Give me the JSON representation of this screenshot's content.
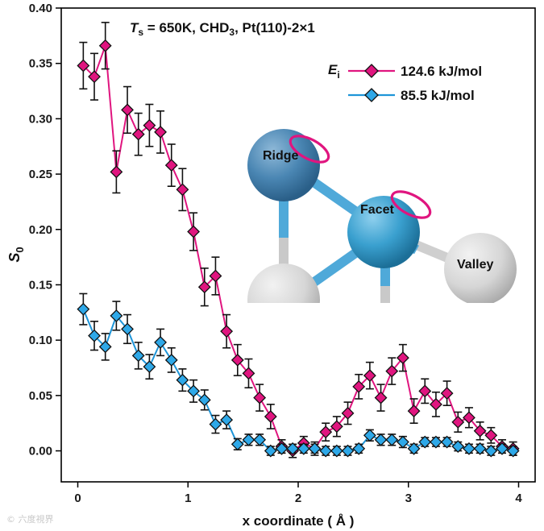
{
  "chart_data": {
    "type": "scatter",
    "title": "T_s = 650K, CHD_3, Pt(110)-2×1",
    "title_parts": {
      "T": "T",
      "s": "s",
      "mid": " = 650K, CHD",
      "sub3": "3",
      "tail": ", Pt(110)-2×1"
    },
    "xlabel": "x coordinate ( Å )",
    "ylabel": {
      "main": "S",
      "sub": "0"
    },
    "xlim": [
      -0.15,
      4.15
    ],
    "ylim": [
      -0.028,
      0.4
    ],
    "x_ticks": [
      "0",
      "1",
      "2",
      "3",
      "4"
    ],
    "y_ticks": [
      "0.00",
      "0.05",
      "0.10",
      "0.15",
      "0.20",
      "0.25",
      "0.30",
      "0.35",
      "0.40"
    ],
    "legend": {
      "label": "E",
      "sub": "i",
      "position": "top-right"
    },
    "series": [
      {
        "name": "124.6 kJ/mol",
        "color": "#e0157f",
        "marker_fill": "#e0157f",
        "x": [
          0.05,
          0.15,
          0.25,
          0.35,
          0.45,
          0.55,
          0.65,
          0.75,
          0.85,
          0.95,
          1.05,
          1.15,
          1.25,
          1.35,
          1.45,
          1.55,
          1.65,
          1.75,
          1.85,
          1.95,
          2.05,
          2.15,
          2.25,
          2.35,
          2.45,
          2.55,
          2.65,
          2.75,
          2.85,
          2.95,
          3.05,
          3.15,
          3.25,
          3.35,
          3.45,
          3.55,
          3.65,
          3.75,
          3.85,
          3.95
        ],
        "y": [
          0.348,
          0.338,
          0.366,
          0.252,
          0.308,
          0.286,
          0.294,
          0.288,
          0.258,
          0.236,
          0.198,
          0.148,
          0.158,
          0.108,
          0.082,
          0.07,
          0.048,
          0.031,
          0.004,
          0.0,
          0.007,
          0.002,
          0.017,
          0.022,
          0.034,
          0.058,
          0.068,
          0.048,
          0.072,
          0.084,
          0.036,
          0.054,
          0.042,
          0.052,
          0.026,
          0.03,
          0.018,
          0.014,
          0.004,
          0.002
        ],
        "err": [
          0.021,
          0.021,
          0.021,
          0.019,
          0.021,
          0.019,
          0.019,
          0.019,
          0.019,
          0.019,
          0.017,
          0.017,
          0.017,
          0.015,
          0.014,
          0.013,
          0.012,
          0.011,
          0.006,
          0.006,
          0.006,
          0.006,
          0.008,
          0.009,
          0.01,
          0.011,
          0.012,
          0.012,
          0.012,
          0.012,
          0.011,
          0.011,
          0.011,
          0.011,
          0.009,
          0.009,
          0.008,
          0.007,
          0.006,
          0.006
        ]
      },
      {
        "name": "85.5 kJ/mol",
        "color": "#1e95d8",
        "marker_fill": "#2ea8e8",
        "x": [
          0.05,
          0.15,
          0.25,
          0.35,
          0.45,
          0.55,
          0.65,
          0.75,
          0.85,
          0.95,
          1.05,
          1.15,
          1.25,
          1.35,
          1.45,
          1.55,
          1.65,
          1.75,
          1.85,
          1.95,
          2.05,
          2.15,
          2.25,
          2.35,
          2.45,
          2.55,
          2.65,
          2.75,
          2.85,
          2.95,
          3.05,
          3.15,
          3.25,
          3.35,
          3.45,
          3.55,
          3.65,
          3.75,
          3.85,
          3.95
        ],
        "y": [
          0.128,
          0.104,
          0.094,
          0.122,
          0.11,
          0.086,
          0.076,
          0.098,
          0.082,
          0.064,
          0.054,
          0.046,
          0.024,
          0.028,
          0.006,
          0.01,
          0.01,
          0.0,
          0.002,
          0.002,
          0.002,
          0.002,
          0.0,
          0.0,
          0.0,
          0.002,
          0.014,
          0.01,
          0.01,
          0.008,
          0.002,
          0.008,
          0.008,
          0.008,
          0.004,
          0.002,
          0.002,
          0.0,
          0.002,
          0.0
        ],
        "err": [
          0.014,
          0.013,
          0.012,
          0.013,
          0.013,
          0.012,
          0.011,
          0.012,
          0.011,
          0.01,
          0.01,
          0.009,
          0.008,
          0.008,
          0.005,
          0.005,
          0.005,
          0.004,
          0.004,
          0.004,
          0.004,
          0.004,
          0.004,
          0.004,
          0.004,
          0.004,
          0.005,
          0.005,
          0.005,
          0.005,
          0.004,
          0.004,
          0.004,
          0.004,
          0.004,
          0.004,
          0.004,
          0.004,
          0.004,
          0.004
        ]
      }
    ],
    "inset_labels": {
      "ridge": "Ridge",
      "facet": "Facet",
      "valley": "Valley"
    }
  },
  "watermark": "© 六度視界"
}
